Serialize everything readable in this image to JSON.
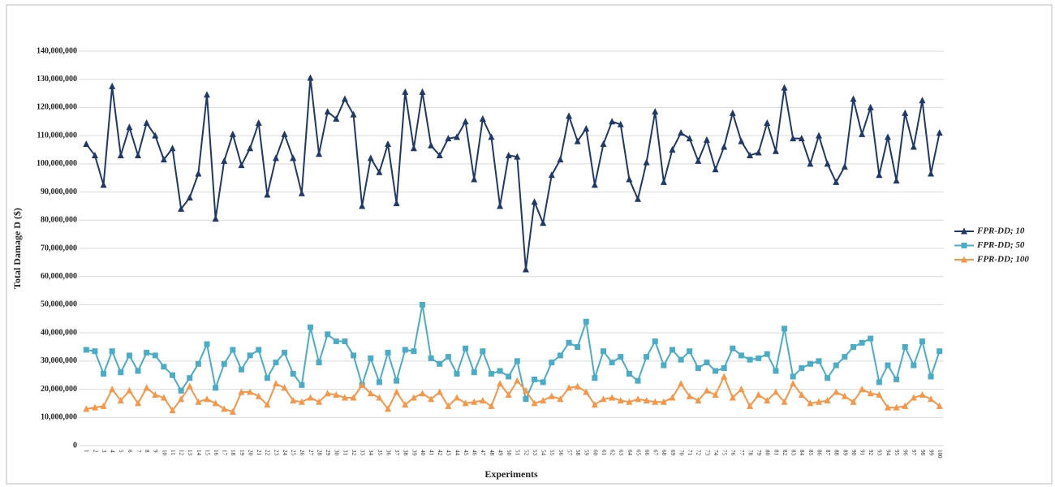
{
  "chart_data": {
    "type": "line",
    "y_label": "Total Damage D ($)",
    "x_label": "Experiments",
    "categories": [
      "1",
      "2",
      "3",
      "4",
      "5",
      "6",
      "7",
      "8",
      "9",
      "10",
      "11",
      "12",
      "13",
      "14",
      "15",
      "16",
      "17",
      "18",
      "19",
      "20",
      "21",
      "22",
      "23",
      "24",
      "25",
      "26",
      "27",
      "28",
      "29",
      "30",
      "31",
      "32",
      "33",
      "34",
      "35",
      "36",
      "37",
      "38",
      "39",
      "40",
      "41",
      "42",
      "43",
      "44",
      "45",
      "46",
      "47",
      "48",
      "49",
      "50",
      "51",
      "52",
      "53",
      "54",
      "55",
      "56",
      "57",
      "58",
      "59",
      "60",
      "61",
      "62",
      "63",
      "64",
      "65",
      "66",
      "67",
      "68",
      "69",
      "70",
      "71",
      "72",
      "73",
      "74",
      "75",
      "76",
      "77",
      "78",
      "79",
      "80",
      "81",
      "82",
      "83",
      "84",
      "85",
      "86",
      "87",
      "88",
      "89",
      "90",
      "91",
      "92",
      "93",
      "94",
      "95",
      "96",
      "97",
      "98",
      "99",
      "100"
    ],
    "series": [
      {
        "name": "FPR-DD; 10",
        "color": "#1f3864",
        "marker": "triangle",
        "values": [
          107000000,
          103000000,
          92500000,
          127500000,
          103000000,
          113000000,
          103000000,
          114500000,
          110000000,
          101500000,
          105500000,
          84000000,
          88000000,
          96500000,
          124500000,
          80500000,
          101000000,
          110500000,
          99500000,
          105500000,
          114500000,
          89000000,
          102000000,
          110500000,
          102000000,
          89500000,
          130500000,
          103500000,
          118500000,
          116000000,
          123000000,
          117500000,
          85000000,
          102000000,
          97000000,
          107000000,
          86000000,
          125500000,
          105500000,
          125500000,
          106500000,
          103000000,
          109000000,
          109500000,
          115000000,
          94500000,
          116000000,
          109500000,
          85000000,
          103000000,
          102500000,
          62500000,
          86500000,
          79000000,
          96000000,
          101500000,
          117000000,
          108000000,
          112500000,
          92500000,
          107000000,
          115000000,
          114000000,
          94500000,
          87500000,
          100500000,
          118500000,
          93500000,
          105000000,
          111000000,
          109000000,
          101000000,
          108500000,
          98000000,
          106000000,
          118000000,
          108000000,
          103000000,
          104000000,
          114500000,
          104500000,
          127000000,
          109000000,
          109000000,
          100000000,
          110000000,
          100000000,
          93500000,
          99000000,
          123000000,
          110500000,
          120000000,
          96000000,
          109500000,
          94000000,
          118000000,
          106000000,
          122500000,
          96500000,
          111000000
        ]
      },
      {
        "name": "FPR-DD; 50",
        "color": "#4bacc6",
        "marker": "square",
        "values": [
          34000000,
          33500000,
          25500000,
          33500000,
          26000000,
          32000000,
          26500000,
          33000000,
          32000000,
          28000000,
          25000000,
          19500000,
          24000000,
          29000000,
          36000000,
          20500000,
          29000000,
          34000000,
          27000000,
          32000000,
          34000000,
          24000000,
          29500000,
          33000000,
          25500000,
          21500000,
          42000000,
          29500000,
          39500000,
          37000000,
          37000000,
          32000000,
          21500000,
          31000000,
          22500000,
          33000000,
          23000000,
          34000000,
          33500000,
          50000000,
          31000000,
          29000000,
          31500000,
          25500000,
          34500000,
          26000000,
          33500000,
          25500000,
          26500000,
          24500000,
          30000000,
          16500000,
          23500000,
          22500000,
          29500000,
          32000000,
          36500000,
          35000000,
          44000000,
          24000000,
          33500000,
          29500000,
          31500000,
          25500000,
          23000000,
          31500000,
          37000000,
          28500000,
          34000000,
          30500000,
          33500000,
          27500000,
          29500000,
          26500000,
          27500000,
          34500000,
          32000000,
          30500000,
          31000000,
          32500000,
          26500000,
          41500000,
          24500000,
          27500000,
          29000000,
          30000000,
          24000000,
          28500000,
          31500000,
          35000000,
          36500000,
          38000000,
          22500000,
          28500000,
          23500000,
          35000000,
          28500000,
          37000000,
          24500000,
          33500000
        ]
      },
      {
        "name": "FPR-DD; 100",
        "color": "#f79646",
        "marker": "triangle",
        "values": [
          13000000,
          13500000,
          14000000,
          20000000,
          16000000,
          19500000,
          15000000,
          20500000,
          18000000,
          17000000,
          12500000,
          16500000,
          21000000,
          15500000,
          16500000,
          15000000,
          13000000,
          12000000,
          19000000,
          19000000,
          17500000,
          14500000,
          22000000,
          20500000,
          16000000,
          15500000,
          17000000,
          15500000,
          18500000,
          18000000,
          17000000,
          17000000,
          21500000,
          18500000,
          17000000,
          13000000,
          19000000,
          14500000,
          17000000,
          18500000,
          16500000,
          19000000,
          14000000,
          17000000,
          15000000,
          15500000,
          16000000,
          14000000,
          22000000,
          18000000,
          23000000,
          19500000,
          15000000,
          16000000,
          17500000,
          16500000,
          20500000,
          21000000,
          19000000,
          14500000,
          16500000,
          17000000,
          16000000,
          15500000,
          16500000,
          16000000,
          15500000,
          15500000,
          17000000,
          22000000,
          17500000,
          16000000,
          19500000,
          18000000,
          24500000,
          17000000,
          20000000,
          14000000,
          18000000,
          16000000,
          19000000,
          15500000,
          22000000,
          18000000,
          15000000,
          15500000,
          16000000,
          19000000,
          17500000,
          15500000,
          20000000,
          18500000,
          18000000,
          13500000,
          13500000,
          14000000,
          17000000,
          18000000,
          16500000,
          14000000
        ]
      }
    ],
    "ylim": [
      0,
      140000000
    ],
    "yticks": [
      0,
      {
        "value": 10000000,
        "label": "10,000,000"
      },
      {
        "value": 20000000,
        "label": "20,000,000"
      },
      {
        "value": 30000000,
        "label": "30,000,000"
      },
      {
        "value": 40000000,
        "label": "40,000,000"
      },
      {
        "value": 50000000,
        "label": "50,000,000"
      },
      {
        "value": 60000000,
        "label": "60,000,000"
      },
      {
        "value": 70000000,
        "label": "70,000,000"
      },
      {
        "value": 80000000,
        "label": "80,000,000"
      },
      {
        "value": 90000000,
        "label": "90,000,000"
      },
      {
        "value": 100000000,
        "label": "100,000,000"
      },
      {
        "value": 110000000,
        "label": "110,000,000"
      },
      {
        "value": 120000000,
        "label": "120,000,000"
      },
      {
        "value": 130000000,
        "label": "130,000,000"
      },
      {
        "value": 140000000,
        "label": "140,000,000"
      }
    ],
    "grid": true,
    "legend": "right"
  }
}
